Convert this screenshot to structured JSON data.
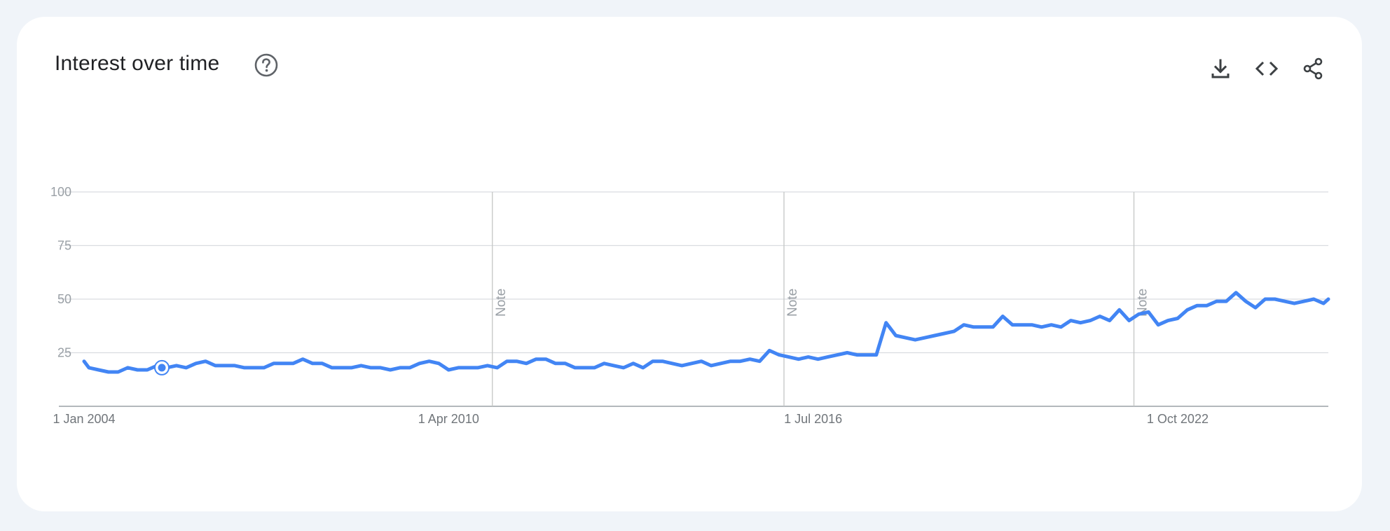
{
  "card": {
    "title": "Interest over time"
  },
  "icons": {
    "help": "help-circle-icon",
    "download": "download-icon",
    "embed": "code-embed-icon",
    "share": "share-icon"
  },
  "colors": {
    "line": "#4285f4",
    "grid": "#dadce0",
    "axis": "#9aa0a6"
  },
  "chart_data": {
    "type": "line",
    "xlabel": "",
    "ylabel": "",
    "ylim": [
      0,
      100
    ],
    "xlim": [
      "2004-01",
      "2025-05"
    ],
    "yticks": [
      25,
      50,
      75,
      100
    ],
    "grid": true,
    "x_tick_labels": [
      {
        "date": "2004-01",
        "label": "1 Jan 2004"
      },
      {
        "date": "2010-04",
        "label": "1 Apr 2010"
      },
      {
        "date": "2016-07",
        "label": "1 Jul 2016"
      },
      {
        "date": "2022-10",
        "label": "1 Oct 2022"
      }
    ],
    "notes": [
      {
        "date": "2011-01",
        "label": "Note"
      },
      {
        "date": "2016-01",
        "label": "Note"
      },
      {
        "date": "2022-01",
        "label": "Note"
      }
    ],
    "highlighted_point": {
      "date": "2005-05",
      "value": 18
    },
    "series": [
      {
        "points": [
          [
            "2004-01",
            21
          ],
          [
            "2004-02",
            18
          ],
          [
            "2004-04",
            17
          ],
          [
            "2004-06",
            16
          ],
          [
            "2004-08",
            16
          ],
          [
            "2004-10",
            18
          ],
          [
            "2004-12",
            17
          ],
          [
            "2005-02",
            17
          ],
          [
            "2005-04",
            19
          ],
          [
            "2005-06",
            18
          ],
          [
            "2005-08",
            19
          ],
          [
            "2005-10",
            18
          ],
          [
            "2005-12",
            20
          ],
          [
            "2006-02",
            21
          ],
          [
            "2006-04",
            19
          ],
          [
            "2006-06",
            19
          ],
          [
            "2006-08",
            19
          ],
          [
            "2006-10",
            18
          ],
          [
            "2006-12",
            18
          ],
          [
            "2007-02",
            18
          ],
          [
            "2007-04",
            20
          ],
          [
            "2007-06",
            20
          ],
          [
            "2007-08",
            20
          ],
          [
            "2007-10",
            22
          ],
          [
            "2007-12",
            20
          ],
          [
            "2008-02",
            20
          ],
          [
            "2008-04",
            18
          ],
          [
            "2008-06",
            18
          ],
          [
            "2008-08",
            18
          ],
          [
            "2008-10",
            19
          ],
          [
            "2008-12",
            18
          ],
          [
            "2009-02",
            18
          ],
          [
            "2009-04",
            17
          ],
          [
            "2009-06",
            18
          ],
          [
            "2009-08",
            18
          ],
          [
            "2009-10",
            20
          ],
          [
            "2009-12",
            21
          ],
          [
            "2010-02",
            20
          ],
          [
            "2010-04",
            17
          ],
          [
            "2010-06",
            18
          ],
          [
            "2010-08",
            18
          ],
          [
            "2010-10",
            18
          ],
          [
            "2010-12",
            19
          ],
          [
            "2011-02",
            18
          ],
          [
            "2011-04",
            21
          ],
          [
            "2011-06",
            21
          ],
          [
            "2011-08",
            20
          ],
          [
            "2011-10",
            22
          ],
          [
            "2011-12",
            22
          ],
          [
            "2012-02",
            20
          ],
          [
            "2012-04",
            20
          ],
          [
            "2012-06",
            18
          ],
          [
            "2012-08",
            18
          ],
          [
            "2012-10",
            18
          ],
          [
            "2012-12",
            20
          ],
          [
            "2013-02",
            19
          ],
          [
            "2013-04",
            18
          ],
          [
            "2013-06",
            20
          ],
          [
            "2013-08",
            18
          ],
          [
            "2013-10",
            21
          ],
          [
            "2013-12",
            21
          ],
          [
            "2014-02",
            20
          ],
          [
            "2014-04",
            19
          ],
          [
            "2014-06",
            20
          ],
          [
            "2014-08",
            21
          ],
          [
            "2014-10",
            19
          ],
          [
            "2014-12",
            20
          ],
          [
            "2015-02",
            21
          ],
          [
            "2015-04",
            21
          ],
          [
            "2015-06",
            22
          ],
          [
            "2015-08",
            21
          ],
          [
            "2015-10",
            26
          ],
          [
            "2015-12",
            24
          ],
          [
            "2016-02",
            23
          ],
          [
            "2016-04",
            22
          ],
          [
            "2016-06",
            23
          ],
          [
            "2016-08",
            22
          ],
          [
            "2016-10",
            23
          ],
          [
            "2016-12",
            24
          ],
          [
            "2017-02",
            25
          ],
          [
            "2017-04",
            24
          ],
          [
            "2017-06",
            24
          ],
          [
            "2017-08",
            24
          ],
          [
            "2017-10",
            39
          ],
          [
            "2017-12",
            33
          ],
          [
            "2018-02",
            32
          ],
          [
            "2018-04",
            31
          ],
          [
            "2018-06",
            32
          ],
          [
            "2018-08",
            33
          ],
          [
            "2018-10",
            34
          ],
          [
            "2018-12",
            35
          ],
          [
            "2019-02",
            38
          ],
          [
            "2019-04",
            37
          ],
          [
            "2019-06",
            37
          ],
          [
            "2019-08",
            37
          ],
          [
            "2019-10",
            42
          ],
          [
            "2019-12",
            38
          ],
          [
            "2020-02",
            38
          ],
          [
            "2020-04",
            38
          ],
          [
            "2020-06",
            37
          ],
          [
            "2020-08",
            38
          ],
          [
            "2020-10",
            37
          ],
          [
            "2020-12",
            40
          ],
          [
            "2021-02",
            39
          ],
          [
            "2021-04",
            40
          ],
          [
            "2021-06",
            42
          ],
          [
            "2021-08",
            40
          ],
          [
            "2021-10",
            45
          ],
          [
            "2021-12",
            40
          ],
          [
            "2022-02",
            43
          ],
          [
            "2022-04",
            44
          ],
          [
            "2022-06",
            38
          ],
          [
            "2022-08",
            40
          ],
          [
            "2022-10",
            41
          ],
          [
            "2022-12",
            45
          ],
          [
            "2023-02",
            47
          ],
          [
            "2023-04",
            47
          ],
          [
            "2023-06",
            49
          ],
          [
            "2023-08",
            49
          ],
          [
            "2023-10",
            53
          ],
          [
            "2023-12",
            49
          ],
          [
            "2024-02",
            46
          ],
          [
            "2024-04",
            50
          ],
          [
            "2024-06",
            50
          ],
          [
            "2024-08",
            49
          ],
          [
            "2024-10",
            48
          ],
          [
            "2024-12",
            49
          ],
          [
            "2025-02",
            50
          ],
          [
            "2025-04",
            48
          ],
          [
            "2025-05",
            50
          ]
        ]
      }
    ]
  }
}
